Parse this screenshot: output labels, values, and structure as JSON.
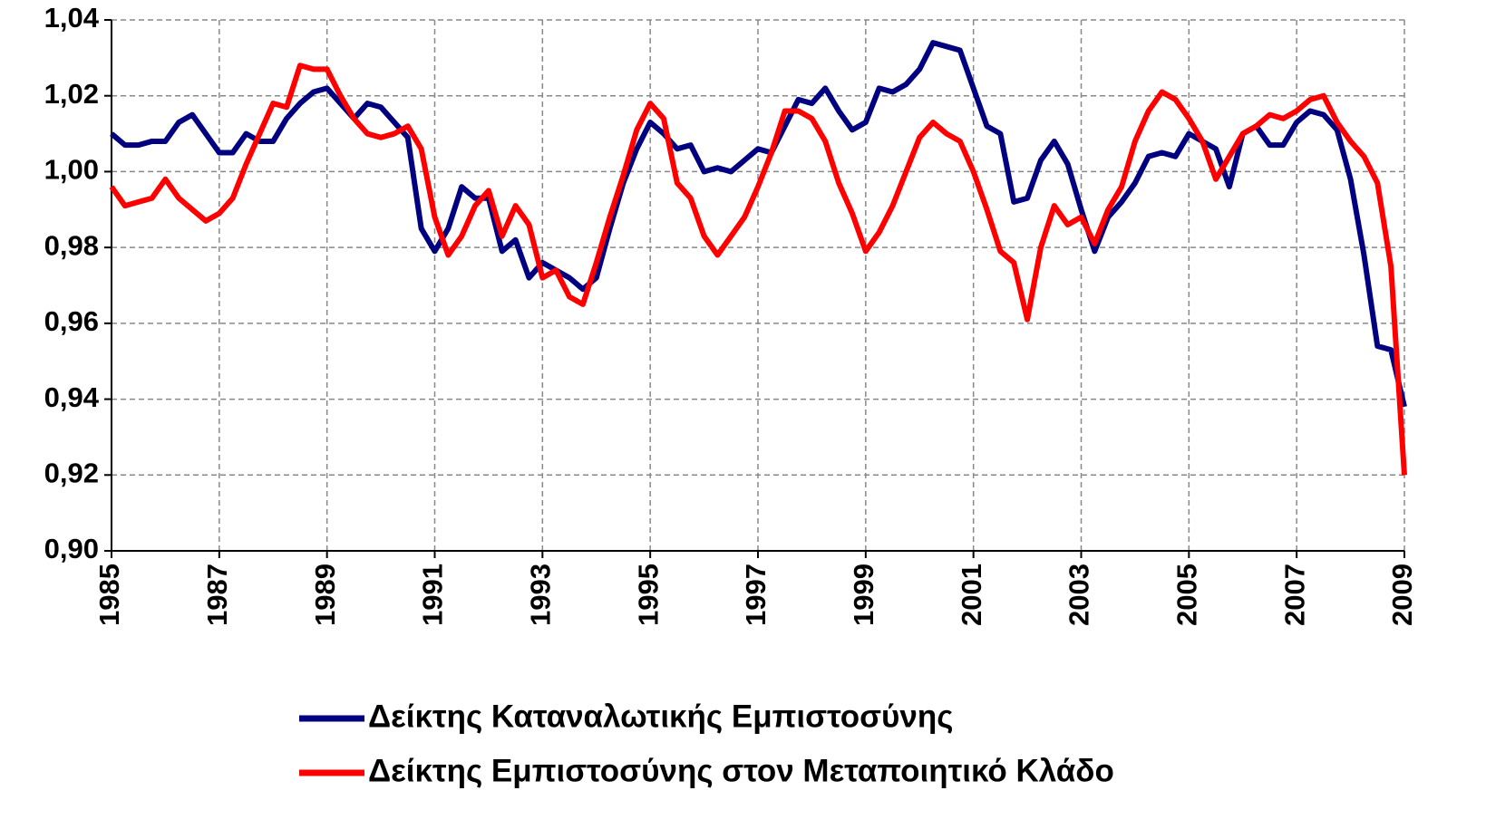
{
  "chart_data": {
    "type": "line",
    "x": [
      1985,
      1985.25,
      1985.5,
      1985.75,
      1986,
      1986.25,
      1986.5,
      1986.75,
      1987,
      1987.25,
      1987.5,
      1987.75,
      1988,
      1988.25,
      1988.5,
      1988.75,
      1989,
      1989.25,
      1989.5,
      1989.75,
      1990,
      1990.25,
      1990.5,
      1990.75,
      1991,
      1991.25,
      1991.5,
      1991.75,
      1992,
      1992.25,
      1992.5,
      1992.75,
      1993,
      1993.25,
      1993.5,
      1993.75,
      1994,
      1994.25,
      1994.5,
      1994.75,
      1995,
      1995.25,
      1995.5,
      1995.75,
      1996,
      1996.25,
      1996.5,
      1996.75,
      1997,
      1997.25,
      1997.5,
      1997.75,
      1998,
      1998.25,
      1998.5,
      1998.75,
      1999,
      1999.25,
      1999.5,
      1999.75,
      2000,
      2000.25,
      2000.5,
      2000.75,
      2001,
      2001.25,
      2001.5,
      2001.75,
      2002,
      2002.25,
      2002.5,
      2002.75,
      2003,
      2003.25,
      2003.5,
      2003.75,
      2004,
      2004.25,
      2004.5,
      2004.75,
      2005,
      2005.25,
      2005.5,
      2005.75,
      2006,
      2006.25,
      2006.5,
      2006.75,
      2007,
      2007.25,
      2007.5,
      2007.75,
      2008,
      2008.25,
      2008.5,
      2008.75,
      2009
    ],
    "series": [
      {
        "name": "Δείκτης Καταναλωτικής Εμπιστοσύνης",
        "color": "#000080",
        "values": [
          1.01,
          1.007,
          1.007,
          1.008,
          1.008,
          1.013,
          1.015,
          1.01,
          1.005,
          1.005,
          1.01,
          1.008,
          1.008,
          1.014,
          1.018,
          1.021,
          1.022,
          1.018,
          1.014,
          1.018,
          1.017,
          1.013,
          1.009,
          0.985,
          0.979,
          0.985,
          0.996,
          0.993,
          0.993,
          0.979,
          0.982,
          0.972,
          0.976,
          0.974,
          0.972,
          0.969,
          0.972,
          0.985,
          0.997,
          1.006,
          1.013,
          1.01,
          1.006,
          1.007,
          1.0,
          1.001,
          1.0,
          1.003,
          1.006,
          1.005,
          1.012,
          1.019,
          1.018,
          1.022,
          1.016,
          1.011,
          1.013,
          1.022,
          1.021,
          1.023,
          1.027,
          1.034,
          1.033,
          1.032,
          1.022,
          1.012,
          1.01,
          0.992,
          0.993,
          1.003,
          1.008,
          1.002,
          0.99,
          0.979,
          0.988,
          0.992,
          0.997,
          1.004,
          1.005,
          1.004,
          1.01,
          1.008,
          1.006,
          0.996,
          1.01,
          1.012,
          1.007,
          1.007,
          1.013,
          1.016,
          1.015,
          1.011,
          0.998,
          0.978,
          0.954,
          0.953,
          0.938
        ]
      },
      {
        "name": "Δείκτης Εμπιστοσύνης στον Μεταποιητικό Κλάδο",
        "color": "#ff0000",
        "values": [
          0.996,
          0.991,
          0.992,
          0.993,
          0.998,
          0.993,
          0.99,
          0.987,
          0.989,
          0.993,
          1.002,
          1.01,
          1.018,
          1.017,
          1.028,
          1.027,
          1.027,
          1.02,
          1.014,
          1.01,
          1.009,
          1.01,
          1.012,
          1.006,
          0.988,
          0.978,
          0.983,
          0.991,
          0.995,
          0.983,
          0.991,
          0.986,
          0.972,
          0.974,
          0.967,
          0.965,
          0.976,
          0.988,
          0.999,
          1.011,
          1.018,
          1.014,
          0.997,
          0.993,
          0.983,
          0.978,
          0.983,
          0.988,
          0.996,
          1.005,
          1.016,
          1.016,
          1.014,
          1.008,
          0.997,
          0.989,
          0.979,
          0.984,
          0.991,
          1.0,
          1.009,
          1.013,
          1.01,
          1.008,
          1.0,
          0.99,
          0.979,
          0.976,
          0.961,
          0.98,
          0.991,
          0.986,
          0.988,
          0.981,
          0.99,
          0.996,
          1.008,
          1.016,
          1.021,
          1.019,
          1.014,
          1.008,
          0.998,
          1.004,
          1.01,
          1.012,
          1.015,
          1.014,
          1.016,
          1.019,
          1.02,
          1.013,
          1.008,
          1.004,
          0.997,
          0.975,
          0.92
        ]
      }
    ],
    "xlim": [
      1985,
      2009
    ],
    "xticks": [
      1985,
      1987,
      1989,
      1991,
      1993,
      1995,
      1997,
      1999,
      2001,
      2003,
      2005,
      2007,
      2009
    ],
    "ylim": [
      0.9,
      1.04
    ],
    "yticks": [
      {
        "value": 0.9,
        "label": "0,90"
      },
      {
        "value": 0.92,
        "label": "0,92"
      },
      {
        "value": 0.94,
        "label": "0,94"
      },
      {
        "value": 0.96,
        "label": "0,96"
      },
      {
        "value": 0.98,
        "label": "0,98"
      },
      {
        "value": 1.0,
        "label": "1,00"
      },
      {
        "value": 1.02,
        "label": "1,02"
      },
      {
        "value": 1.04,
        "label": "1,04"
      }
    ],
    "grid": true
  }
}
